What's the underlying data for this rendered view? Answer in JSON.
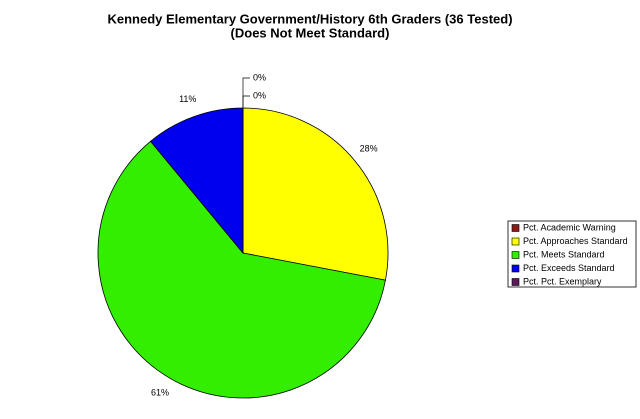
{
  "chart_data": {
    "type": "pie",
    "title": "Kennedy Elementary Government/History 6th Graders (36 Tested)",
    "subtitle": "(Does Not Meet Standard)",
    "categories": [
      "Pct. Academic Warning",
      "Pct. Approaches Standard",
      "Pct. Meets Standard",
      "Pct. Exceeds Standard",
      "Pct. Pct. Exemplary"
    ],
    "values": [
      0,
      28,
      61,
      11,
      0
    ],
    "value_labels": [
      "0%",
      "28%",
      "61%",
      "11%",
      "0%"
    ],
    "colors": [
      "#8b1a1a",
      "#ffff00",
      "#33ee00",
      "#0000ee",
      "#5a1a5a"
    ],
    "legend": "right"
  }
}
